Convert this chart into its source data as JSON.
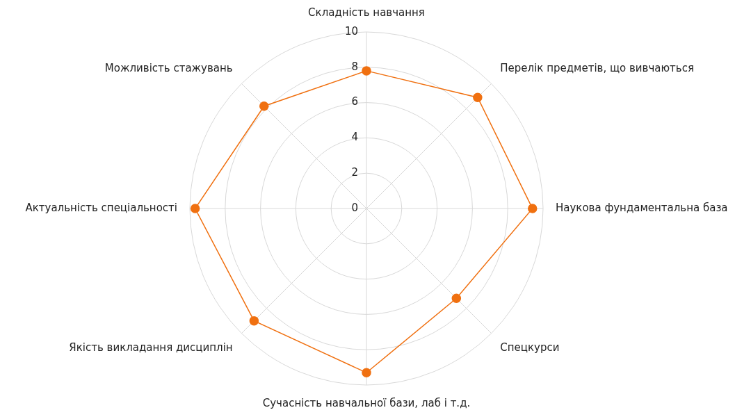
{
  "chart_data": {
    "type": "radar",
    "categories": [
      "Складність навчання",
      "Перелік предметів, що вивчаються",
      "Наукова фундаментальна база",
      "Спецкурси",
      "Сучасність навчальної бази, лаб і т.д.",
      "Якість викладання дисциплін",
      "Актуальність спеціальності",
      "Можливість стажувань"
    ],
    "series": [
      {
        "color": "#f07010",
        "values": [
          7.8,
          8.9,
          9.4,
          7.2,
          9.3,
          9.0,
          9.7,
          8.2
        ]
      }
    ],
    "ylim": [
      0,
      10
    ],
    "yticks": [
      0,
      2,
      4,
      6,
      8,
      10
    ],
    "grid": true,
    "marker": "circle"
  }
}
